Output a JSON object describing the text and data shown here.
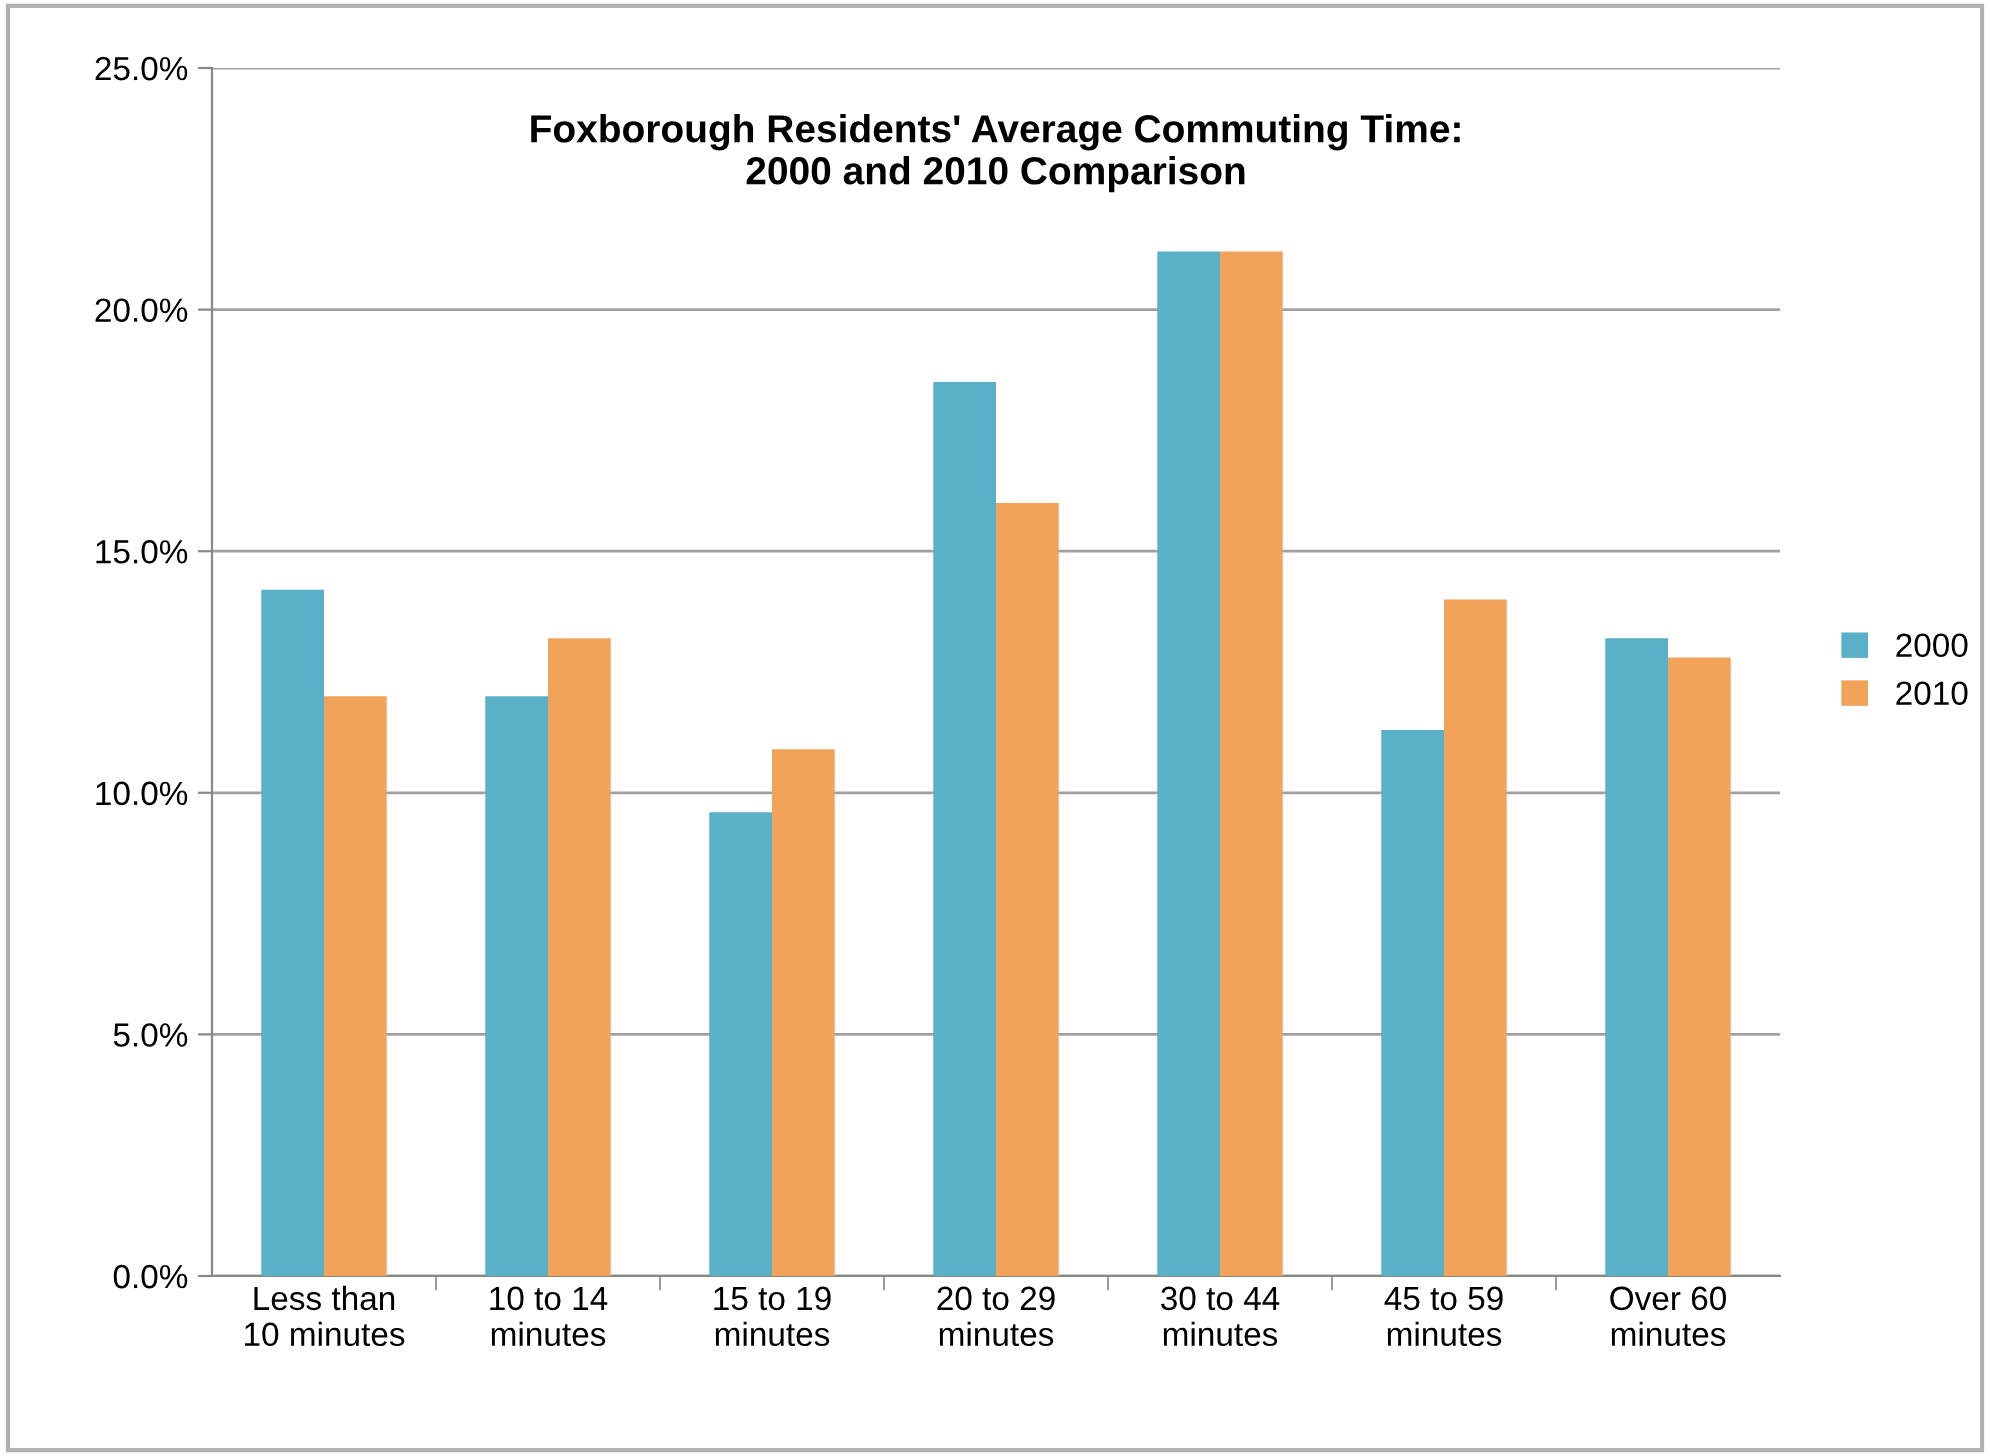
{
  "chart_data": {
    "type": "bar",
    "title": "Foxborough Residents' Average Commuting Time:\n2000 and 2010 Comparison",
    "categories": [
      "Less than\n10 minutes",
      "10 to 14\nminutes",
      "15 to 19\nminutes",
      "20 to 29\nminutes",
      "30 to 44\nminutes",
      "45 to 59\nminutes",
      "Over 60\nminutes"
    ],
    "series": [
      {
        "name": "2000",
        "color": "#5ab0c6",
        "values": [
          14.2,
          12.0,
          9.6,
          18.5,
          21.2,
          11.3,
          13.2
        ]
      },
      {
        "name": "2010",
        "color": "#f1a35a",
        "values": [
          12.0,
          13.2,
          10.9,
          16.0,
          21.2,
          14.0,
          12.8
        ]
      }
    ],
    "ylim": [
      0,
      25
    ],
    "yticks": [
      {
        "value": 0,
        "label": "0.0%"
      },
      {
        "value": 5,
        "label": "5.0%"
      },
      {
        "value": 10,
        "label": "10.0%"
      },
      {
        "value": 15,
        "label": "15.0%"
      },
      {
        "value": 20,
        "label": "20.0%"
      },
      {
        "value": 25,
        "label": "25.0%"
      }
    ],
    "grid": "y",
    "legend": "right"
  }
}
